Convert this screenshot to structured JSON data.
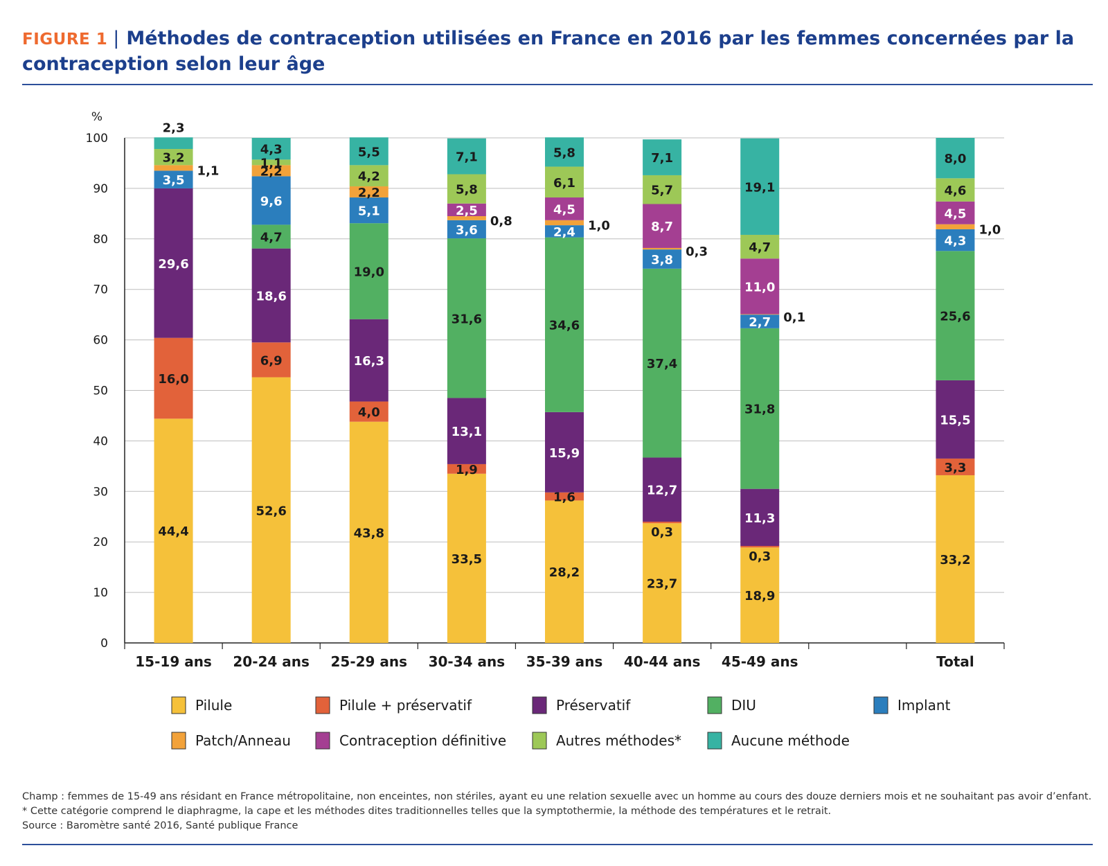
{
  "header": {
    "figure_label": "FIGURE 1",
    "title": "Méthodes de contraception utilisées en France en 2016 par les femmes concernées par la contraception selon leur âge"
  },
  "chart_data": {
    "type": "bar",
    "stacked": true,
    "ylabel": "%",
    "ylim": [
      0,
      100
    ],
    "yticks": [
      0,
      10,
      20,
      30,
      40,
      50,
      60,
      70,
      80,
      90,
      100
    ],
    "grid": true,
    "legend_position": "bottom",
    "categories": [
      "15-19 ans",
      "20-24 ans",
      "25-29 ans",
      "30-34 ans",
      "35-39 ans",
      "40-44 ans",
      "45-49 ans",
      "Total"
    ],
    "series": [
      {
        "name": "Pilule",
        "color": "#f5c13a",
        "values": [
          44.4,
          52.6,
          43.8,
          33.5,
          28.2,
          23.7,
          18.9,
          33.2
        ],
        "labels": [
          "44,4",
          "52,6",
          "43,8",
          "33,5",
          "28,2",
          "23,7",
          "18,9",
          "33,2"
        ]
      },
      {
        "name": "Pilule + préservatif",
        "color": "#e2623a",
        "values": [
          16.0,
          6.9,
          4.0,
          1.9,
          1.6,
          0.3,
          0.3,
          3.3
        ],
        "labels": [
          "16,0",
          "6,9",
          "4,0",
          "1,9",
          "1,6",
          "0,3",
          "0,3",
          "3,3"
        ]
      },
      {
        "name": "Préservatif",
        "color": "#6a2878",
        "values": [
          29.6,
          18.6,
          16.3,
          13.1,
          15.9,
          12.7,
          11.3,
          15.5
        ],
        "labels": [
          "29,6",
          "18,6",
          "16,3",
          "13,1",
          "15,9",
          "12,7",
          "11,3",
          "15,5"
        ]
      },
      {
        "name": "DIU",
        "color": "#52b062",
        "values": [
          0,
          4.7,
          19.0,
          31.6,
          34.6,
          37.4,
          31.8,
          25.6
        ],
        "labels": [
          "",
          "4,7",
          "19,0",
          "31,6",
          "34,6",
          "37,4",
          "31,8",
          "25,6"
        ]
      },
      {
        "name": "Implant",
        "color": "#2b7ebd",
        "values": [
          3.5,
          9.6,
          5.1,
          3.6,
          2.4,
          3.8,
          2.7,
          4.3
        ],
        "labels": [
          "3,5",
          "9,6",
          "5,1",
          "3,6",
          "2,4",
          "3,8",
          "2,7",
          "4,3"
        ]
      },
      {
        "name": "Patch/Anneau",
        "color": "#f2a23a",
        "values": [
          1.1,
          2.2,
          2.2,
          0.8,
          1.0,
          0.3,
          0.1,
          1.0
        ],
        "labels": [
          "1,1",
          "2,2",
          "2,2",
          "0,8",
          "1,0",
          "0,3",
          "0,1",
          "1,0"
        ]
      },
      {
        "name": "Contraception définitive",
        "color": "#a43f92",
        "values": [
          0,
          0,
          0,
          2.5,
          4.5,
          8.7,
          11.0,
          4.5
        ],
        "labels": [
          "",
          "",
          "",
          "2,5",
          "4,5",
          "8,7",
          "11,0",
          "4,5"
        ]
      },
      {
        "name": "Autres méthodes*",
        "color": "#9dc857",
        "values": [
          3.2,
          1.1,
          4.2,
          5.8,
          6.1,
          5.7,
          4.7,
          4.6
        ],
        "labels": [
          "3,2",
          "1,1",
          "4,2",
          "5,8",
          "6,1",
          "5,7",
          "4,7",
          "4,6"
        ]
      },
      {
        "name": "Aucune méthode",
        "color": "#37b3a3",
        "values": [
          2.3,
          4.3,
          5.5,
          7.1,
          5.8,
          7.1,
          19.1,
          8.0
        ],
        "labels": [
          "2,3",
          "4,3",
          "5,5",
          "7,1",
          "5,8",
          "7,1",
          "19,1",
          "8,0"
        ]
      }
    ]
  },
  "notes": {
    "champ": "Champ : femmes de 15-49 ans résidant en France métropolitaine, non enceintes, non stériles, ayant eu une relation sexuelle avec un homme au cours des douze derniers mois et ne souhaitant pas avoir d’enfant.",
    "footnote": "* Cette catégorie comprend le diaphragme, la cape et les méthodes dites traditionnelles telles que la symptothermie, la méthode des températures et le retrait.",
    "source": "Source : Baromètre santé 2016, Santé publique France"
  }
}
